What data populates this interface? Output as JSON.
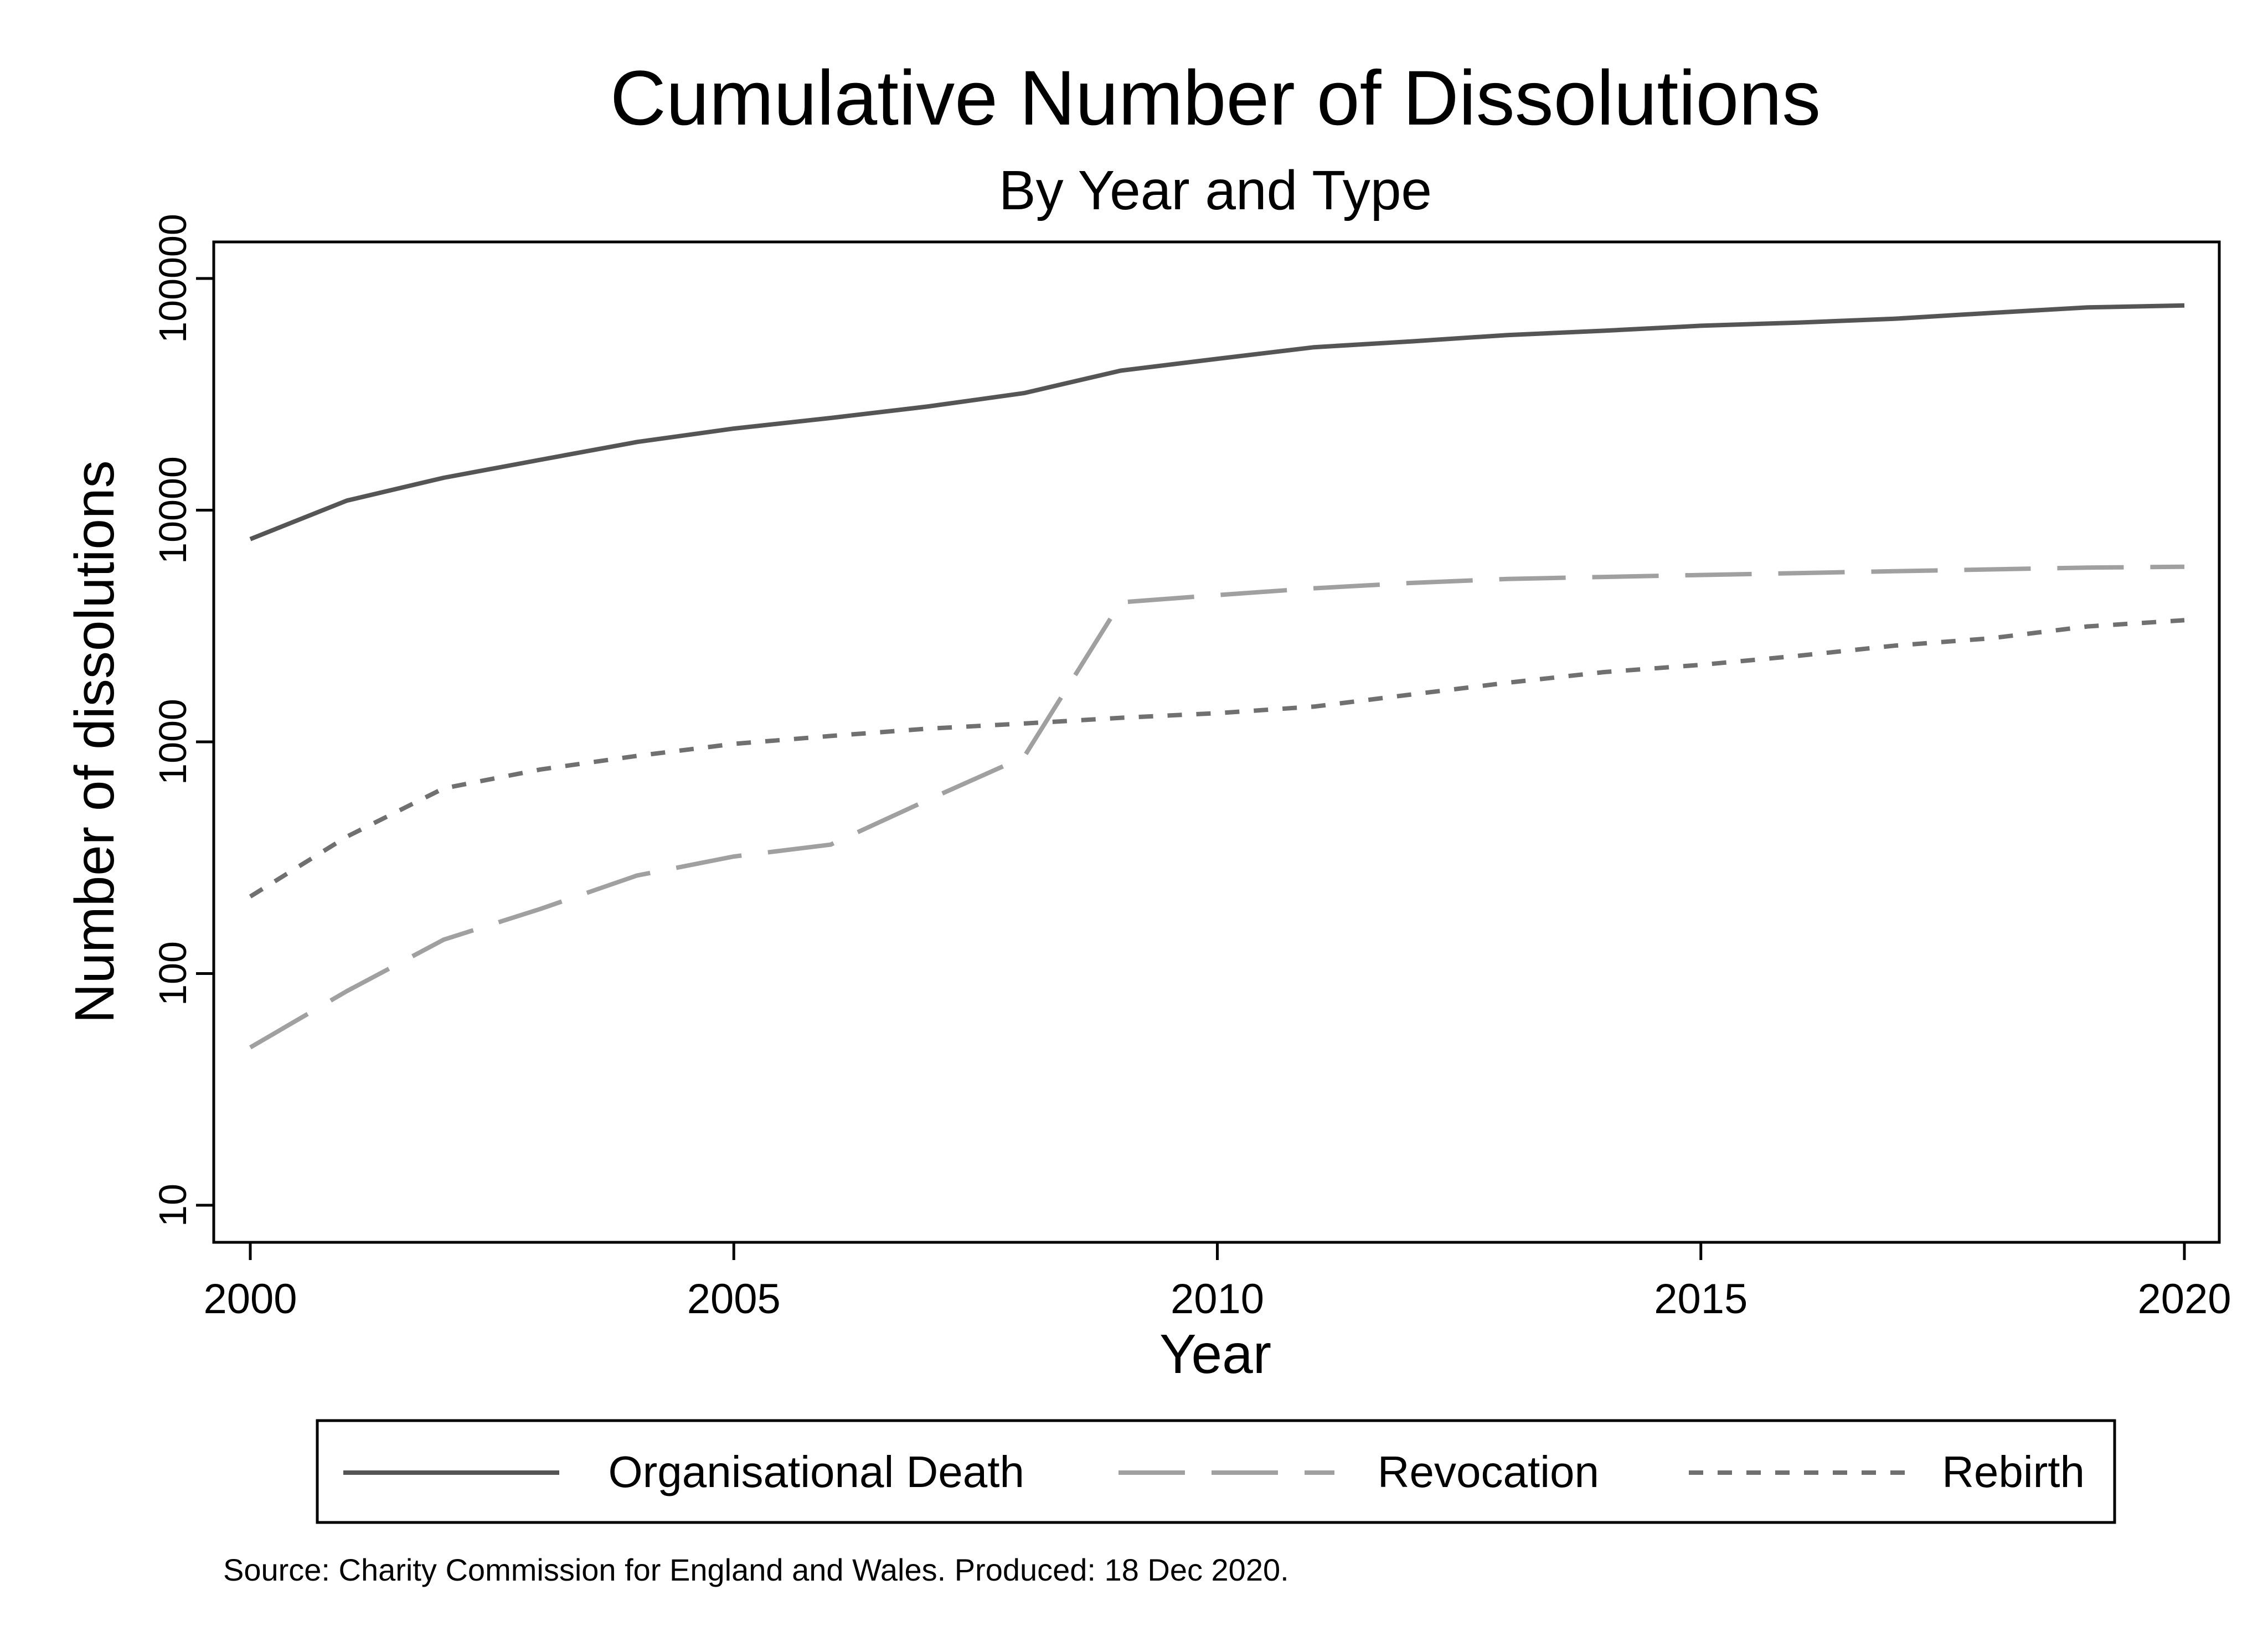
{
  "chart_data": {
    "type": "line",
    "title": "Cumulative Number of Dissolutions",
    "subtitle": "By Year and Type",
    "xlabel": "Year",
    "ylabel": "Number of dissolutions",
    "xlim": [
      2000,
      2020
    ],
    "xticks": [
      2000,
      2005,
      2010,
      2015,
      2020
    ],
    "xtick_labels": [
      "2000",
      "2005",
      "2010",
      "2015",
      "2020"
    ],
    "yscale": "log",
    "ylim": [
      10,
      100000
    ],
    "yticks": [
      10,
      100,
      1000,
      10000,
      100000
    ],
    "ytick_labels": [
      "10",
      "100",
      "1000",
      "10000",
      "100000"
    ],
    "grid": false,
    "legend_position": "bottom",
    "x": [
      2000,
      2001,
      2002,
      2003,
      2004,
      2005,
      2006,
      2007,
      2008,
      2009,
      2010,
      2011,
      2012,
      2013,
      2014,
      2015,
      2016,
      2017,
      2018,
      2019,
      2020
    ],
    "series": [
      {
        "name": "Organisational Death",
        "style": "solid",
        "color": "#555555",
        "values": [
          7500,
          11000,
          13800,
          16500,
          19700,
          22500,
          25000,
          28000,
          32000,
          40000,
          45000,
          50500,
          53500,
          57000,
          59500,
          62500,
          64500,
          67000,
          71000,
          75000,
          76500
        ]
      },
      {
        "name": "Revocation",
        "style": "dash",
        "color": "#a0a0a0",
        "values": [
          48,
          84,
          140,
          190,
          265,
          320,
          360,
          560,
          860,
          4000,
          4300,
          4600,
          4850,
          5050,
          5150,
          5250,
          5350,
          5450,
          5550,
          5650,
          5700
        ]
      },
      {
        "name": "Rebirth",
        "style": "dot",
        "color": "#707070",
        "values": [
          215,
          390,
          630,
          760,
          870,
          980,
          1060,
          1140,
          1200,
          1270,
          1330,
          1420,
          1600,
          1800,
          2000,
          2150,
          2350,
          2600,
          2800,
          3150,
          3350
        ]
      }
    ],
    "source_note": "Source: Charity Commission for England and Wales. Produced: 18 Dec 2020."
  }
}
